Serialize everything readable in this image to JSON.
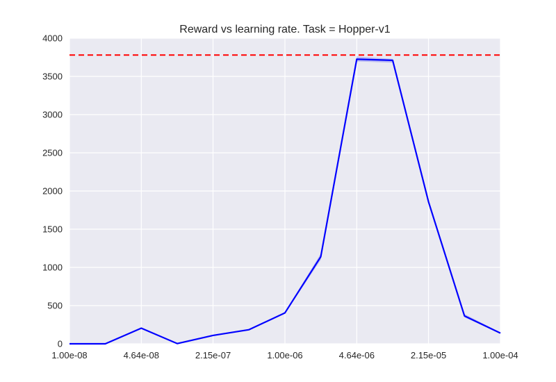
{
  "chart_data": {
    "type": "line",
    "title": "Reward vs learning rate. Task = Hopper-v1",
    "xlabel": "",
    "ylabel": "",
    "x_scale": "log",
    "xlim": [
      1e-08,
      0.0001
    ],
    "ylim": [
      0,
      4000
    ],
    "grid": true,
    "x_tick_labels": [
      "1.00e-08",
      "4.64e-08",
      "2.15e-07",
      "1.00e-06",
      "4.64e-06",
      "2.15e-05",
      "1.00e-04"
    ],
    "x_tick_values": [
      1e-08,
      4.64e-08,
      2.15e-07,
      1e-06,
      4.64e-06,
      2.15e-05,
      0.0001
    ],
    "y_tick_labels": [
      "0",
      "500",
      "1000",
      "1500",
      "2000",
      "2500",
      "3000",
      "3500",
      "4000"
    ],
    "y_tick_values": [
      0,
      500,
      1000,
      1500,
      2000,
      2500,
      3000,
      3500,
      4000
    ],
    "series": [
      {
        "x": [
          1e-08,
          2.15e-08,
          4.64e-08,
          1e-07,
          2.15e-07,
          4.64e-07,
          1e-06,
          2.15e-06,
          4.64e-06,
          1e-05,
          2.15e-05,
          4.64e-05,
          0.0001
        ],
        "values": [
          0,
          0,
          205,
          3,
          110,
          185,
          405,
          1140,
          3725,
          3710,
          1860,
          365,
          140
        ],
        "band_low": [
          0,
          0,
          200,
          0,
          105,
          180,
          395,
          1100,
          3695,
          3680,
          1830,
          345,
          135
        ],
        "band_high": [
          5,
          5,
          210,
          8,
          115,
          190,
          415,
          1180,
          3760,
          3730,
          1890,
          390,
          148
        ],
        "color": "#0000ff",
        "band_color": "#8c8cf2"
      }
    ],
    "reference_line": {
      "y": 3780,
      "color": "#ff0000",
      "style": "dashed"
    },
    "background_color": "#eaeaf2",
    "grid_color": "#ffffff"
  }
}
